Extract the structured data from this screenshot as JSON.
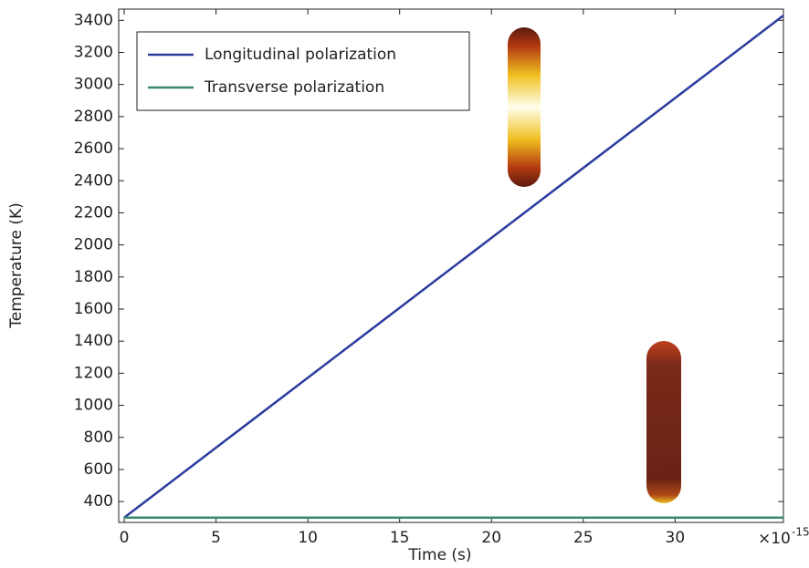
{
  "chart_data": {
    "type": "line",
    "x_label": "Time (s)",
    "y_label": "Temperature (K)",
    "x_multiplier": "×10",
    "x_multiplier_exponent": "-15",
    "x": [
      0,
      35.9
    ],
    "series": [
      {
        "name": "Longitudinal polarization",
        "color": "#2b3c9e",
        "values": [
          300,
          3430
        ]
      },
      {
        "name": "Transverse polarization",
        "color": "#3a8a6e",
        "values": [
          300,
          300
        ]
      }
    ],
    "xlim": [
      -0.3,
      35.9
    ],
    "ylim": [
      270,
      3470
    ],
    "xticks": [
      0,
      5,
      10,
      15,
      20,
      25,
      30
    ],
    "yticks": [
      400,
      600,
      800,
      1000,
      1200,
      1400,
      1600,
      1800,
      2000,
      2200,
      2400,
      2600,
      2800,
      3000,
      3200,
      3400
    ],
    "legend": "upper-left"
  }
}
